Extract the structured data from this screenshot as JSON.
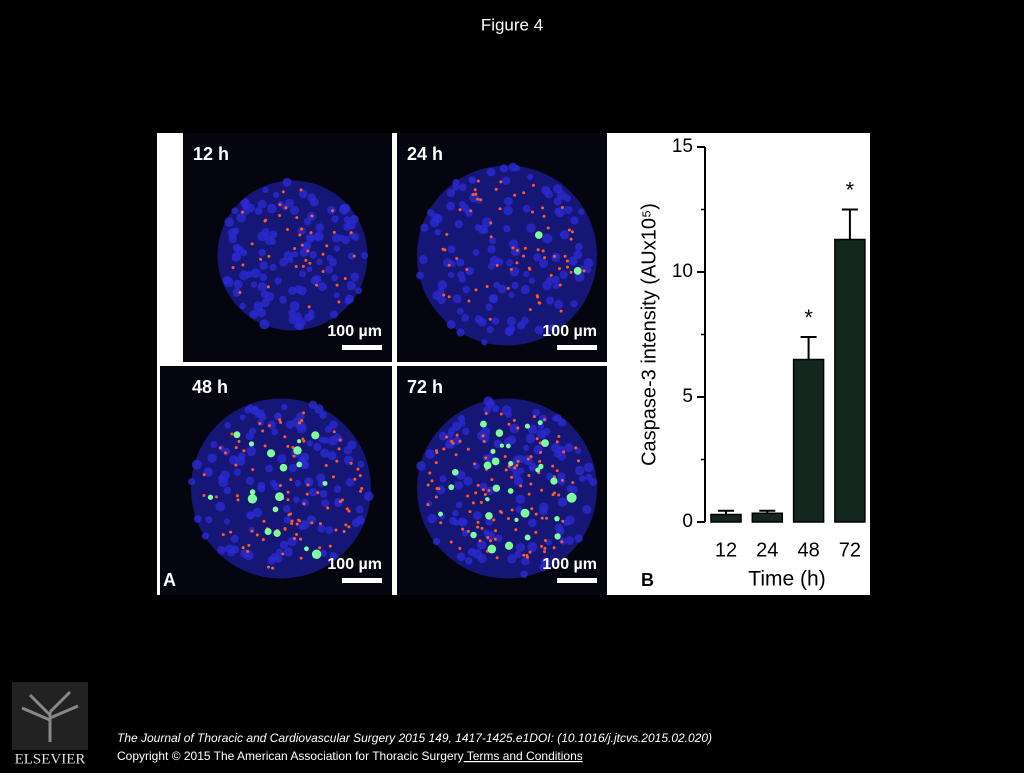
{
  "header": {
    "title": "Figure 4"
  },
  "panel_a": {
    "label": "A",
    "panels": [
      {
        "label": "12 h",
        "scale_bar": "100 µm"
      },
      {
        "label": "24 h",
        "scale_bar": "100 µm"
      },
      {
        "label": "48 h",
        "scale_bar": "100 µm"
      },
      {
        "label": "72 h",
        "scale_bar": "100 µm"
      }
    ]
  },
  "chart_data": {
    "type": "bar",
    "panel_label": "B",
    "x_label": "Time (h)",
    "y_label": "Caspase-3 intensity (AUx10⁵)",
    "categories": [
      "12",
      "24",
      "48",
      "72"
    ],
    "series": [
      {
        "name": "Caspase-3",
        "color": "#14271f",
        "values": [
          0.3,
          0.35,
          6.5,
          11.3
        ],
        "errors": [
          0.15,
          0.1,
          0.9,
          1.2
        ]
      }
    ],
    "annotations": [
      null,
      null,
      "*",
      "*"
    ],
    "ylim": [
      0,
      15
    ],
    "yticks": [
      0,
      5,
      10,
      15
    ]
  },
  "footer": {
    "logo": "ELSEVIER",
    "citation": "The Journal of Thoracic and Cardiovascular Surgery 2015 149, 1417-1425.e1DOI: (10.1016/j.jtcvs.2015.02.020)",
    "copyright": "Copyright © 2015 The American Association for Thoracic Surgery",
    "link": " Terms and Conditions"
  }
}
